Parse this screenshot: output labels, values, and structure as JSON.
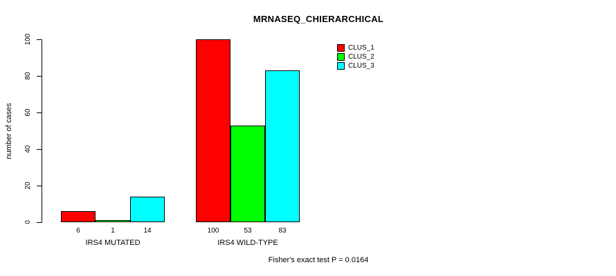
{
  "chart_data": {
    "type": "bar",
    "title": "MRNASEQ_CHIERARCHICAL",
    "xlabel": "",
    "ylabel": "number of cases",
    "ylim": [
      0,
      100
    ],
    "yticks": [
      0,
      20,
      40,
      60,
      80,
      100
    ],
    "categories": [
      "IRS4 MUTATED",
      "IRS4 WILD-TYPE"
    ],
    "series": [
      {
        "name": "CLUS_1",
        "color": "#ff0000",
        "values": [
          6,
          100
        ]
      },
      {
        "name": "CLUS_2",
        "color": "#00ff00",
        "values": [
          1,
          53
        ]
      },
      {
        "name": "CLUS_3",
        "color": "#00ffff",
        "values": [
          14,
          83
        ]
      }
    ],
    "bar_value_labels": [
      [
        6,
        1,
        14
      ],
      [
        100,
        53,
        83
      ]
    ],
    "legend_position": "top-right",
    "grid": false,
    "annotation": "Fisher's exact test P = 0.0164"
  }
}
